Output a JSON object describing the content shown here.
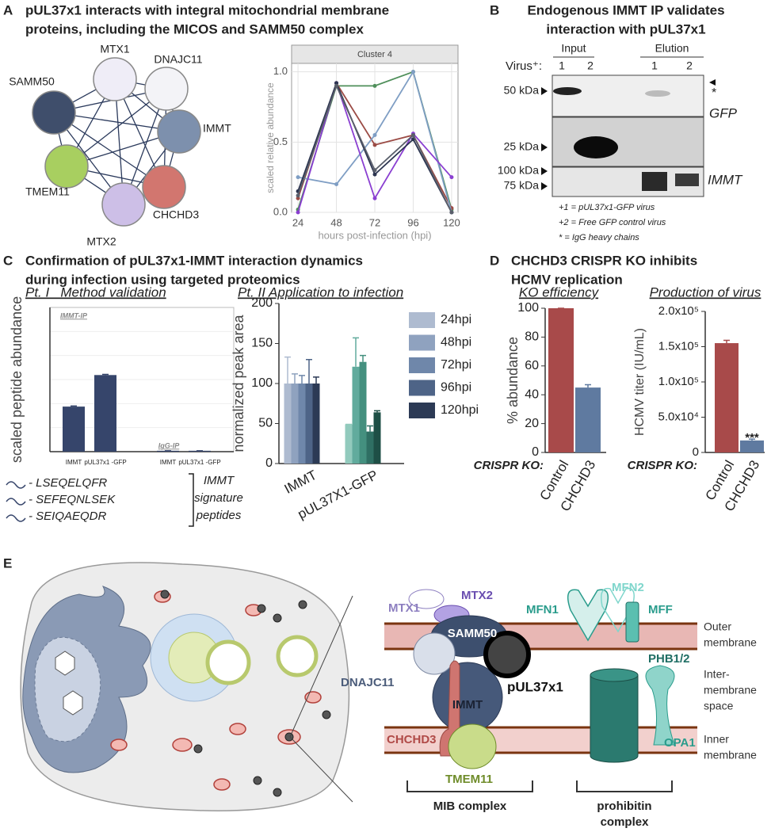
{
  "panels": {
    "A": {
      "label": "A",
      "title": [
        "pUL37x1 interacts with integral mitochondrial membrane",
        "proteins, including the MICOS and SAMM50 complex"
      ],
      "nodes": [
        {
          "label": "MTX1",
          "color": "#efedf7"
        },
        {
          "label": "DNAJC11",
          "color": "#f3f3f7"
        },
        {
          "label": "SAMM50",
          "color": "#3f4e6b"
        },
        {
          "label": "IMMT",
          "color": "#7d90ad"
        },
        {
          "label": "TMEM11",
          "color": "#a8cf60"
        },
        {
          "label": "MTX2",
          "color": "#cdbfe7"
        },
        {
          "label": "CHCHD3",
          "color": "#d2766f"
        }
      ]
    },
    "B": {
      "label": "B",
      "title": [
        "Endogenous IMMT IP validates",
        "interaction with pUL37x1"
      ],
      "lane_groups": [
        "Input",
        "Elution"
      ],
      "virus_label": "Virus⁺:",
      "lanes": [
        "1",
        "2",
        "1",
        "2"
      ],
      "markers": [
        "50 kDa",
        "25 kDa",
        "100 kDa",
        "75 kDa"
      ],
      "blot_labels": [
        "GFP",
        "IMMT"
      ],
      "star": "*",
      "notes": [
        "+1 = pUL37x1-GFP virus",
        "+2 = Free GFP control virus",
        "* = IgG heavy chains"
      ]
    },
    "C": {
      "label": "C",
      "title": [
        "Confirmation of pUL37x1-IMMT interaction dynamics",
        "during infection using targeted proteomics"
      ],
      "subtitles": [
        "Pt. I   Method validation",
        "Pt. II Application to infection"
      ],
      "peptides": [
        "- LSEQELQFR",
        "- SEFEQNLSEK",
        "- SEIQAEQDR"
      ],
      "peptide_note": [
        "IMMT",
        "signature",
        "peptides"
      ]
    },
    "D": {
      "label": "D",
      "title": [
        "CHCHD3 CRISPR KO inhibits",
        "HCMV replication"
      ],
      "subtitles": [
        "KO efficiency",
        "Production of virus"
      ]
    },
    "E": {
      "label": "E",
      "proteins": [
        "MTX1",
        "MTX2",
        "MFN2",
        "MFN1",
        "MFF",
        "SAMM50",
        "DNAJC11",
        "pUL37x1",
        "IMMT",
        "PHB1/2",
        "CHCHD3",
        "OPA1",
        "TMEM11"
      ],
      "membranes": [
        [
          "Outer",
          "membrane"
        ],
        [
          "Inter-",
          "membrane",
          "space"
        ],
        [
          "Inner",
          "membrane"
        ]
      ],
      "complexes": [
        [
          "MIB complex"
        ],
        [
          "prohibitin",
          "complex"
        ]
      ]
    }
  },
  "chart_data": [
    {
      "type": "line",
      "title": "Cluster 4",
      "xlabel": "hours post-infection (hpi)",
      "ylabel": "scaled relative abundance",
      "x": [
        24,
        48,
        72,
        96,
        120
      ],
      "xlim": [
        20,
        124
      ],
      "xticks": [
        24,
        48,
        72,
        96,
        120
      ],
      "ylim": [
        0,
        1.06
      ],
      "yticks": [
        {
          "value": 0,
          "label": "0.0"
        },
        {
          "value": 0.5,
          "label": "0.5"
        },
        {
          "value": 1,
          "label": "1.0"
        }
      ],
      "grid": true,
      "series": [
        {
          "color": "#4f8f5a",
          "values": [
            0.02,
            0.9,
            0.9,
            1.0,
            0.02
          ]
        },
        {
          "color": "#9b4b45",
          "values": [
            0.1,
            0.92,
            0.48,
            0.55,
            0.03
          ]
        },
        {
          "color": "#7f9ec4",
          "values": [
            0.25,
            0.2,
            0.55,
            1.0,
            0.0
          ]
        },
        {
          "color": "#8a3fd1",
          "values": [
            0.0,
            0.92,
            0.1,
            0.56,
            0.25
          ]
        },
        {
          "color": "#2c3550",
          "values": [
            0.15,
            0.92,
            0.27,
            0.52,
            0.0
          ]
        },
        {
          "color": "#5a5f6b",
          "values": [
            0.12,
            0.9,
            0.3,
            0.55,
            0.0
          ]
        }
      ]
    },
    {
      "type": "bar",
      "ylabel": "scaled peptide abundance",
      "categories": [
        "IMMT",
        "pUL37x1 -GFP",
        "IMMT",
        "pUL37x1 -GFP"
      ],
      "values": [
        1.5,
        2.55,
        0.03,
        0.03
      ],
      "errors": [
        0.02,
        0.02,
        0,
        0
      ],
      "color": "#36456b",
      "ylim": [
        0,
        4.8
      ],
      "grid": true,
      "annotations": [
        "IMMT-IP",
        "IgG-IP"
      ]
    },
    {
      "type": "bar",
      "ylabel": "normalized peak area",
      "categories": [
        "IMMT",
        "pUL37X1-GFP"
      ],
      "ylim": [
        0,
        200
      ],
      "yticks": [
        0,
        50,
        100,
        150,
        200
      ],
      "legend": "right",
      "series": [
        {
          "name": "24hpi",
          "colors": [
            "#aebbd0",
            "#92cabd"
          ],
          "values": [
            100,
            49
          ],
          "errors": [
            33,
            0
          ]
        },
        {
          "name": "48hpi",
          "colors": [
            "#8fa2bf",
            "#61ab9d"
          ],
          "values": [
            100,
            121
          ],
          "errors": [
            12,
            36
          ]
        },
        {
          "name": "72hpi",
          "colors": [
            "#6f87aa",
            "#44907f"
          ],
          "values": [
            100,
            127
          ],
          "errors": [
            10,
            8
          ]
        },
        {
          "name": "96hpi",
          "colors": [
            "#4e6487",
            "#2f6f63"
          ],
          "values": [
            100,
            40
          ],
          "errors": [
            30,
            7
          ]
        },
        {
          "name": "120hpi",
          "colors": [
            "#2c3a55",
            "#1e4f46"
          ],
          "values": [
            100,
            64
          ],
          "errors": [
            8,
            2
          ]
        }
      ]
    },
    {
      "type": "bar",
      "ylabel": "% abundance",
      "xlabel": "CRISPR KO:",
      "categories": [
        "Control",
        "CHCHD3"
      ],
      "values": [
        100,
        45
      ],
      "errors": [
        0,
        2
      ],
      "colors": [
        "#a84a4a",
        "#5f7aa0"
      ],
      "ylim": [
        0,
        100
      ],
      "yticks": [
        0,
        20,
        40,
        60,
        80,
        100
      ]
    },
    {
      "type": "bar",
      "ylabel": "HCMV titer (IU/mL)",
      "xlabel": "CRISPR KO:",
      "categories": [
        "Control",
        "CHCHD3"
      ],
      "values": [
        155000,
        17000
      ],
      "errors": [
        4000,
        2000
      ],
      "colors": [
        "#a84a4a",
        "#5f7aa0"
      ],
      "ylim": [
        0,
        200000
      ],
      "yticks": [
        0,
        {
          "value": 50000,
          "label": "5.0x10⁴"
        },
        {
          "value": 100000,
          "label": "1.0x10⁵"
        },
        {
          "value": 150000,
          "label": "1.5x10⁵"
        },
        {
          "value": 200000,
          "label": "2.0x10⁵"
        }
      ],
      "annotations": [
        "***"
      ]
    }
  ]
}
